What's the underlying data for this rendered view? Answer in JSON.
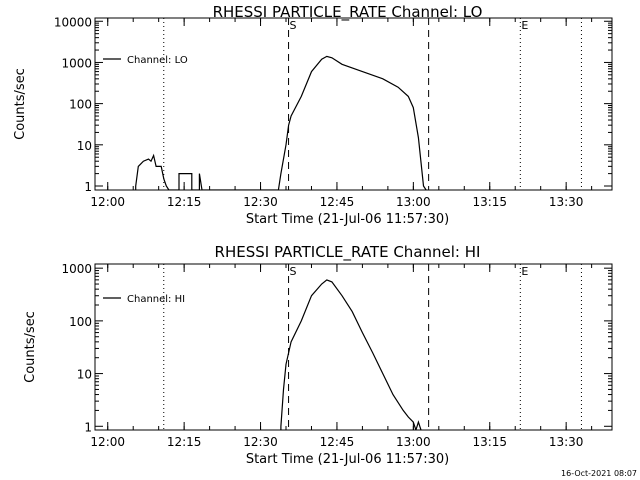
{
  "chart_data": [
    {
      "type": "line",
      "title": "RHESSI PARTICLE_RATE Channel: LO",
      "xlabel": "Start Time (21-Jul-06 11:57:30)",
      "ylabel": "Counts/sec",
      "y_scale": "log",
      "xlim": [
        "11:57:30",
        "13:39"
      ],
      "ylim": [
        0.8,
        12000
      ],
      "x_ticks": [
        "12:00",
        "12:15",
        "12:30",
        "12:45",
        "13:00",
        "13:15",
        "13:30"
      ],
      "y_ticks": [
        "1",
        "10",
        "100",
        "1000",
        "10000"
      ],
      "legend": {
        "position": "top-left"
      },
      "markers": [
        {
          "label": "",
          "x": "11:57:30",
          "style": "dotted"
        },
        {
          "label": "",
          "x": "12:11",
          "style": "dotted"
        },
        {
          "label": "S",
          "x": "12:35:30",
          "style": "dashed"
        },
        {
          "label": "",
          "x": "13:03",
          "style": "dashed"
        },
        {
          "label": "E",
          "x": "13:21",
          "style": "dotted"
        },
        {
          "label": "",
          "x": "13:33",
          "style": "dotted"
        }
      ],
      "series": [
        {
          "name": "Channel: LO",
          "points": [
            [
              "12:05:30",
              0.6
            ],
            [
              "12:05:30",
              1
            ],
            [
              "12:06",
              3
            ],
            [
              "12:07",
              4
            ],
            [
              "12:08",
              4.5
            ],
            [
              "12:08:30",
              4
            ],
            [
              "12:09",
              5.5
            ],
            [
              "12:09:30",
              3
            ],
            [
              "12:10:30",
              3
            ],
            [
              "12:11",
              1.5
            ],
            [
              "12:11:30",
              1
            ],
            [
              "12:12",
              0.6
            ],
            [
              "12:14",
              0.6
            ],
            [
              "12:14",
              2
            ],
            [
              "12:16:30",
              2
            ],
            [
              "12:16:30",
              0.6
            ],
            [
              "12:18",
              0.6
            ],
            [
              "12:18",
              2
            ],
            [
              "12:18:30",
              0.6
            ],
            [
              "12:33:30",
              0.6
            ],
            [
              "12:34",
              2
            ],
            [
              "12:35",
              10
            ],
            [
              "12:35:30",
              30
            ],
            [
              "12:36",
              50
            ],
            [
              "12:38",
              150
            ],
            [
              "12:40",
              600
            ],
            [
              "12:42",
              1200
            ],
            [
              "12:43",
              1400
            ],
            [
              "12:44",
              1300
            ],
            [
              "12:46",
              900
            ],
            [
              "12:50",
              600
            ],
            [
              "12:54",
              400
            ],
            [
              "12:57",
              250
            ],
            [
              "12:59",
              150
            ],
            [
              "13:00",
              80
            ],
            [
              "13:01",
              15
            ],
            [
              "13:02",
              1
            ],
            [
              "13:02:30",
              0.6
            ]
          ]
        }
      ]
    },
    {
      "type": "line",
      "title": "RHESSI PARTICLE_RATE Channel: HI",
      "xlabel": "Start Time (21-Jul-06 11:57:30)",
      "ylabel": "Counts/sec",
      "y_scale": "log",
      "xlim": [
        "11:57:30",
        "13:39"
      ],
      "ylim": [
        0.85,
        1200
      ],
      "x_ticks": [
        "12:00",
        "12:15",
        "12:30",
        "12:45",
        "13:00",
        "13:15",
        "13:30"
      ],
      "y_ticks": [
        "1",
        "10",
        "100",
        "1000"
      ],
      "legend": {
        "position": "top-left"
      },
      "markers": [
        {
          "label": "",
          "x": "11:57:30",
          "style": "dotted"
        },
        {
          "label": "",
          "x": "12:11",
          "style": "dotted"
        },
        {
          "label": "S",
          "x": "12:35:30",
          "style": "dashed"
        },
        {
          "label": "",
          "x": "13:03",
          "style": "dashed"
        },
        {
          "label": "E",
          "x": "13:21",
          "style": "dotted"
        },
        {
          "label": "",
          "x": "13:33",
          "style": "dotted"
        }
      ],
      "series": [
        {
          "name": "Channel: HI",
          "points": [
            [
              "12:34",
              0.7
            ],
            [
              "12:34",
              1
            ],
            [
              "12:34:30",
              5
            ],
            [
              "12:35",
              15
            ],
            [
              "12:36",
              40
            ],
            [
              "12:38",
              100
            ],
            [
              "12:40",
              300
            ],
            [
              "12:42",
              500
            ],
            [
              "12:43",
              600
            ],
            [
              "12:44",
              550
            ],
            [
              "12:46",
              300
            ],
            [
              "12:48",
              150
            ],
            [
              "12:50",
              60
            ],
            [
              "12:52",
              25
            ],
            [
              "12:54",
              10
            ],
            [
              "12:56",
              4
            ],
            [
              "12:58",
              2
            ],
            [
              "12:59",
              1.5
            ],
            [
              "13:00",
              1.2
            ],
            [
              "13:00:30",
              0.8
            ],
            [
              "13:01",
              1.2
            ],
            [
              "13:01:30",
              0.7
            ]
          ]
        }
      ]
    }
  ],
  "footer": {
    "timestamp": "16-Oct-2021 08:07"
  }
}
